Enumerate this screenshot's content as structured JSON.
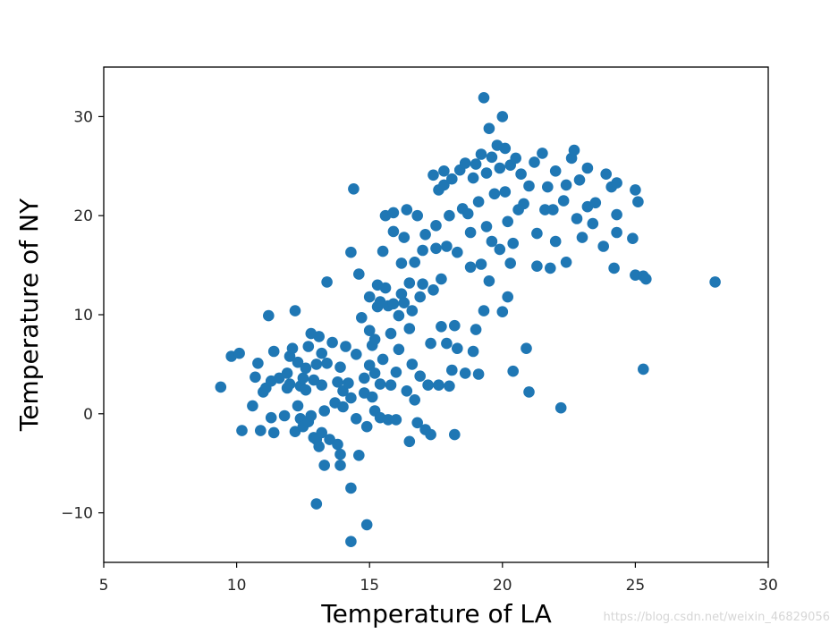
{
  "colors": {
    "point": "#1f77b4",
    "axis": "#000000",
    "background": "#ffffff"
  },
  "watermark": "https://blog.csdn.net/weixin_46829056",
  "chart_data": {
    "type": "scatter",
    "title": "",
    "xlabel": "Temperature of LA",
    "ylabel": "Temperature of NY",
    "xlim": [
      5,
      30
    ],
    "ylim": [
      -15,
      35
    ],
    "xticks": [
      5,
      10,
      15,
      20,
      25,
      30
    ],
    "yticks": [
      -10,
      0,
      10,
      20,
      30
    ],
    "ytick_labels": [
      "−10",
      "0",
      "10",
      "20",
      "30"
    ],
    "grid": false,
    "points": [
      [
        9.4,
        2.7
      ],
      [
        9.8,
        5.8
      ],
      [
        10.1,
        6.1
      ],
      [
        10.2,
        -1.7
      ],
      [
        10.6,
        0.8
      ],
      [
        10.7,
        3.7
      ],
      [
        10.8,
        5.1
      ],
      [
        10.9,
        -1.7
      ],
      [
        11.0,
        2.2
      ],
      [
        11.1,
        2.6
      ],
      [
        11.2,
        9.9
      ],
      [
        11.3,
        -0.4
      ],
      [
        11.3,
        3.3
      ],
      [
        11.4,
        -1.9
      ],
      [
        11.4,
        6.3
      ],
      [
        11.6,
        3.6
      ],
      [
        11.8,
        -0.2
      ],
      [
        11.9,
        2.6
      ],
      [
        11.9,
        4.1
      ],
      [
        12.0,
        3.0
      ],
      [
        12.0,
        5.8
      ],
      [
        12.1,
        6.6
      ],
      [
        12.2,
        10.4
      ],
      [
        12.2,
        -1.8
      ],
      [
        12.3,
        0.8
      ],
      [
        12.3,
        5.2
      ],
      [
        12.4,
        -0.5
      ],
      [
        12.4,
        2.8
      ],
      [
        12.5,
        3.6
      ],
      [
        12.5,
        -1.3
      ],
      [
        12.6,
        2.4
      ],
      [
        12.6,
        4.6
      ],
      [
        12.7,
        6.8
      ],
      [
        12.7,
        -0.8
      ],
      [
        12.8,
        8.1
      ],
      [
        12.8,
        -0.2
      ],
      [
        12.9,
        -2.4
      ],
      [
        12.9,
        3.4
      ],
      [
        13.0,
        -2.6
      ],
      [
        13.0,
        5.0
      ],
      [
        13.0,
        -9.1
      ],
      [
        13.1,
        7.8
      ],
      [
        13.1,
        -3.3
      ],
      [
        13.2,
        2.9
      ],
      [
        13.2,
        -1.9
      ],
      [
        13.2,
        6.1
      ],
      [
        13.3,
        0.3
      ],
      [
        13.3,
        -5.2
      ],
      [
        13.4,
        5.1
      ],
      [
        13.4,
        13.3
      ],
      [
        13.5,
        -2.6
      ],
      [
        13.6,
        7.2
      ],
      [
        13.7,
        1.1
      ],
      [
        13.8,
        3.2
      ],
      [
        13.8,
        -3.1
      ],
      [
        13.9,
        4.7
      ],
      [
        13.9,
        -5.2
      ],
      [
        13.9,
        -4.1
      ],
      [
        14.0,
        2.3
      ],
      [
        14.0,
        0.7
      ],
      [
        14.1,
        6.8
      ],
      [
        14.2,
        3.1
      ],
      [
        14.3,
        1.6
      ],
      [
        14.3,
        16.3
      ],
      [
        14.3,
        -7.5
      ],
      [
        14.3,
        -12.9
      ],
      [
        14.4,
        22.7
      ],
      [
        14.5,
        6.0
      ],
      [
        14.5,
        -0.5
      ],
      [
        14.6,
        14.1
      ],
      [
        14.6,
        -4.2
      ],
      [
        14.7,
        9.7
      ],
      [
        14.8,
        2.1
      ],
      [
        14.8,
        3.6
      ],
      [
        14.9,
        -1.3
      ],
      [
        14.9,
        -11.2
      ],
      [
        15.0,
        4.9
      ],
      [
        15.0,
        8.4
      ],
      [
        15.0,
        11.8
      ],
      [
        15.1,
        1.7
      ],
      [
        15.1,
        6.9
      ],
      [
        15.2,
        0.3
      ],
      [
        15.2,
        4.1
      ],
      [
        15.2,
        7.5
      ],
      [
        15.3,
        10.8
      ],
      [
        15.3,
        13.0
      ],
      [
        15.4,
        -0.4
      ],
      [
        15.4,
        3.0
      ],
      [
        15.4,
        11.3
      ],
      [
        15.5,
        16.4
      ],
      [
        15.5,
        5.5
      ],
      [
        15.6,
        12.7
      ],
      [
        15.6,
        20.0
      ],
      [
        15.7,
        10.9
      ],
      [
        15.7,
        -0.6
      ],
      [
        15.8,
        2.9
      ],
      [
        15.8,
        8.1
      ],
      [
        15.9,
        20.3
      ],
      [
        15.9,
        11.1
      ],
      [
        15.9,
        18.4
      ],
      [
        16.0,
        -0.6
      ],
      [
        16.0,
        4.2
      ],
      [
        16.1,
        6.5
      ],
      [
        16.1,
        9.9
      ],
      [
        16.2,
        12.1
      ],
      [
        16.2,
        15.2
      ],
      [
        16.3,
        17.8
      ],
      [
        16.3,
        11.2
      ],
      [
        16.4,
        2.3
      ],
      [
        16.4,
        20.6
      ],
      [
        16.5,
        8.6
      ],
      [
        16.5,
        13.2
      ],
      [
        16.5,
        -2.8
      ],
      [
        16.6,
        5.0
      ],
      [
        16.6,
        10.4
      ],
      [
        16.7,
        1.4
      ],
      [
        16.7,
        15.3
      ],
      [
        16.8,
        20.0
      ],
      [
        16.8,
        -0.9
      ],
      [
        16.9,
        11.8
      ],
      [
        16.9,
        3.8
      ],
      [
        17.0,
        13.1
      ],
      [
        17.0,
        16.5
      ],
      [
        17.1,
        -1.6
      ],
      [
        17.1,
        18.1
      ],
      [
        17.2,
        2.9
      ],
      [
        17.3,
        -2.1
      ],
      [
        17.3,
        7.1
      ],
      [
        17.4,
        12.5
      ],
      [
        17.4,
        24.1
      ],
      [
        17.5,
        16.7
      ],
      [
        17.5,
        19.0
      ],
      [
        17.6,
        2.9
      ],
      [
        17.6,
        22.6
      ],
      [
        17.7,
        8.8
      ],
      [
        17.7,
        13.6
      ],
      [
        17.8,
        23.1
      ],
      [
        17.8,
        24.5
      ],
      [
        17.9,
        7.1
      ],
      [
        17.9,
        16.9
      ],
      [
        18.0,
        2.8
      ],
      [
        18.0,
        20.0
      ],
      [
        18.1,
        4.4
      ],
      [
        18.1,
        23.7
      ],
      [
        18.2,
        8.9
      ],
      [
        18.2,
        -2.1
      ],
      [
        18.3,
        6.6
      ],
      [
        18.3,
        16.3
      ],
      [
        18.4,
        24.6
      ],
      [
        18.5,
        20.7
      ],
      [
        18.6,
        25.3
      ],
      [
        18.6,
        4.1
      ],
      [
        18.7,
        20.2
      ],
      [
        18.8,
        14.8
      ],
      [
        18.8,
        18.3
      ],
      [
        18.9,
        23.8
      ],
      [
        18.9,
        6.3
      ],
      [
        19.0,
        25.2
      ],
      [
        19.0,
        8.5
      ],
      [
        19.1,
        21.4
      ],
      [
        19.1,
        4.0
      ],
      [
        19.2,
        15.1
      ],
      [
        19.2,
        26.2
      ],
      [
        19.3,
        31.9
      ],
      [
        19.3,
        10.4
      ],
      [
        19.4,
        18.9
      ],
      [
        19.4,
        24.3
      ],
      [
        19.5,
        13.4
      ],
      [
        19.5,
        28.8
      ],
      [
        19.6,
        17.4
      ],
      [
        19.6,
        25.9
      ],
      [
        19.7,
        22.2
      ],
      [
        19.8,
        27.1
      ],
      [
        19.9,
        24.8
      ],
      [
        19.9,
        16.6
      ],
      [
        20.0,
        30.0
      ],
      [
        20.0,
        10.3
      ],
      [
        20.1,
        26.8
      ],
      [
        20.1,
        22.4
      ],
      [
        20.2,
        19.4
      ],
      [
        20.2,
        11.8
      ],
      [
        20.3,
        15.2
      ],
      [
        20.3,
        25.1
      ],
      [
        20.4,
        17.2
      ],
      [
        20.4,
        4.3
      ],
      [
        20.5,
        25.8
      ],
      [
        20.6,
        20.6
      ],
      [
        20.7,
        24.2
      ],
      [
        20.8,
        21.2
      ],
      [
        20.9,
        6.6
      ],
      [
        21.0,
        2.2
      ],
      [
        21.0,
        23.0
      ],
      [
        21.2,
        25.4
      ],
      [
        21.3,
        14.9
      ],
      [
        21.3,
        18.2
      ],
      [
        21.5,
        26.3
      ],
      [
        21.6,
        20.6
      ],
      [
        21.7,
        22.9
      ],
      [
        21.8,
        14.7
      ],
      [
        21.9,
        20.6
      ],
      [
        22.0,
        24.5
      ],
      [
        22.0,
        17.4
      ],
      [
        22.2,
        0.6
      ],
      [
        22.3,
        21.5
      ],
      [
        22.4,
        15.3
      ],
      [
        22.4,
        23.1
      ],
      [
        22.6,
        25.8
      ],
      [
        22.7,
        26.6
      ],
      [
        22.8,
        19.7
      ],
      [
        22.9,
        23.6
      ],
      [
        23.0,
        17.8
      ],
      [
        23.2,
        20.9
      ],
      [
        23.2,
        24.8
      ],
      [
        23.4,
        19.2
      ],
      [
        23.5,
        21.3
      ],
      [
        23.8,
        16.9
      ],
      [
        23.9,
        24.2
      ],
      [
        24.1,
        22.9
      ],
      [
        24.2,
        14.7
      ],
      [
        24.3,
        20.1
      ],
      [
        24.3,
        18.3
      ],
      [
        24.3,
        23.3
      ],
      [
        24.9,
        17.7
      ],
      [
        25.0,
        14.0
      ],
      [
        25.0,
        22.6
      ],
      [
        25.1,
        21.4
      ],
      [
        25.3,
        13.9
      ],
      [
        25.3,
        4.5
      ],
      [
        25.4,
        13.6
      ],
      [
        28.0,
        13.3
      ]
    ]
  }
}
